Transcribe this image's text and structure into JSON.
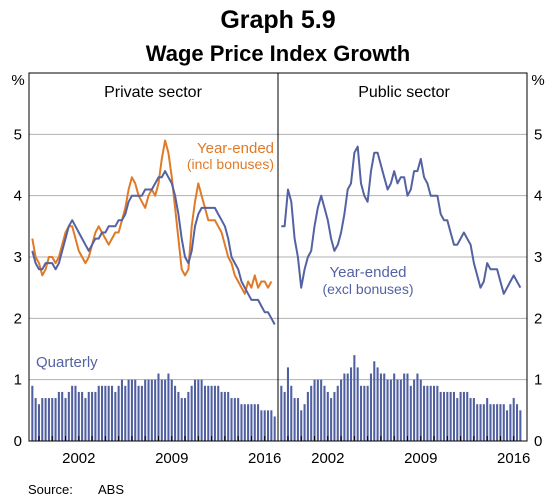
{
  "chart_data": {
    "type": "line",
    "title": "Graph 5.9",
    "subtitle": "Wage Price Index Growth",
    "ylabel": "%",
    "ylim": [
      0,
      6
    ],
    "yticks": [
      "0",
      "1",
      "2",
      "3",
      "4",
      "5"
    ],
    "xticks": [
      "2002",
      "2009",
      "2016"
    ],
    "source_label": "Source:",
    "source_value": "ABS",
    "colors": {
      "orange": "#e07a26",
      "blue": "#5462a3",
      "grid": "#b0b0b0",
      "bar": "#4f5fa0"
    },
    "panels": [
      {
        "name": "Private sector",
        "annotations": [
          {
            "text": "Year-ended",
            "color": "#e07a26"
          },
          {
            "text": "(incl bonuses)",
            "color": "#e07a26"
          },
          {
            "text": "Quarterly",
            "color": "#5462a3"
          }
        ],
        "series": [
          {
            "name": "Year-ended (incl bonuses)",
            "color": "#e07a26",
            "start": 1998.5,
            "step": 0.25,
            "values": [
              3.3,
              3.0,
              2.9,
              2.7,
              2.8,
              3.0,
              3.0,
              2.9,
              3.0,
              3.2,
              3.4,
              3.5,
              3.5,
              3.3,
              3.1,
              3.0,
              2.9,
              3.0,
              3.2,
              3.4,
              3.5,
              3.4,
              3.3,
              3.2,
              3.3,
              3.4,
              3.4,
              3.6,
              3.8,
              4.1,
              4.3,
              4.2,
              4.0,
              3.9,
              3.8,
              4.0,
              4.1,
              4.0,
              4.2,
              4.6,
              4.9,
              4.7,
              4.3,
              3.8,
              3.3,
              2.8,
              2.7,
              2.8,
              3.5,
              3.9,
              4.2,
              4.0,
              3.8,
              3.6,
              3.6,
              3.6,
              3.5,
              3.4,
              3.2,
              3.0,
              2.9,
              2.7,
              2.6,
              2.5,
              2.4,
              2.6,
              2.5,
              2.7,
              2.5,
              2.6,
              2.6,
              2.5,
              2.6
            ]
          },
          {
            "name": "Year-ended (excl bonuses)",
            "color": "#5462a3",
            "start": 1998.5,
            "step": 0.25,
            "values": [
              3.1,
              2.9,
              2.8,
              2.8,
              2.9,
              2.9,
              2.9,
              2.8,
              2.9,
              3.1,
              3.3,
              3.5,
              3.6,
              3.5,
              3.4,
              3.3,
              3.2,
              3.1,
              3.2,
              3.3,
              3.3,
              3.4,
              3.4,
              3.5,
              3.5,
              3.5,
              3.6,
              3.6,
              3.7,
              3.9,
              4.0,
              4.0,
              4.0,
              4.0,
              4.1,
              4.1,
              4.1,
              4.2,
              4.3,
              4.3,
              4.4,
              4.3,
              4.2,
              4.0,
              3.7,
              3.3,
              3.0,
              2.9,
              3.1,
              3.5,
              3.7,
              3.8,
              3.8,
              3.8,
              3.8,
              3.8,
              3.7,
              3.6,
              3.5,
              3.3,
              3.0,
              2.9,
              2.8,
              2.6,
              2.5,
              2.4,
              2.3,
              2.3,
              2.3,
              2.2,
              2.1,
              2.1,
              2.0,
              1.9
            ]
          }
        ],
        "bars": {
          "name": "Quarterly",
          "start": 1998.5,
          "step": 0.25,
          "values": [
            0.9,
            0.7,
            0.6,
            0.7,
            0.7,
            0.7,
            0.7,
            0.7,
            0.8,
            0.8,
            0.7,
            0.8,
            0.9,
            0.9,
            0.8,
            0.8,
            0.7,
            0.8,
            0.8,
            0.8,
            0.9,
            0.9,
            0.9,
            0.9,
            0.9,
            0.8,
            0.9,
            1.0,
            0.9,
            1.0,
            1.0,
            1.0,
            0.9,
            0.9,
            1.0,
            1.0,
            1.0,
            1.0,
            1.1,
            1.0,
            1.0,
            1.1,
            1.0,
            0.9,
            0.8,
            0.7,
            0.7,
            0.8,
            0.9,
            1.0,
            1.0,
            1.0,
            0.9,
            0.9,
            0.9,
            0.9,
            0.9,
            0.8,
            0.8,
            0.8,
            0.7,
            0.7,
            0.7,
            0.6,
            0.6,
            0.6,
            0.6,
            0.6,
            0.6,
            0.5,
            0.5,
            0.5,
            0.5,
            0.4
          ]
        }
      },
      {
        "name": "Public sector",
        "annotations": [
          {
            "text": "Year-ended",
            "color": "#5462a3"
          },
          {
            "text": "(excl bonuses)",
            "color": "#5462a3"
          }
        ],
        "series": [
          {
            "name": "Year-ended (excl bonuses)",
            "color": "#5462a3",
            "start": 1998.5,
            "step": 0.25,
            "values": [
              3.5,
              3.5,
              4.1,
              3.9,
              3.3,
              3.0,
              2.5,
              2.8,
              3.0,
              3.1,
              3.5,
              3.8,
              4.0,
              3.8,
              3.6,
              3.3,
              3.1,
              3.2,
              3.4,
              3.7,
              4.1,
              4.2,
              4.7,
              4.8,
              4.2,
              4.0,
              3.9,
              4.4,
              4.7,
              4.7,
              4.5,
              4.3,
              4.1,
              4.2,
              4.4,
              4.2,
              4.3,
              4.3,
              4.0,
              4.1,
              4.4,
              4.4,
              4.6,
              4.3,
              4.2,
              4.0,
              4.0,
              4.0,
              3.7,
              3.6,
              3.6,
              3.4,
              3.2,
              3.2,
              3.3,
              3.4,
              3.3,
              3.2,
              2.9,
              2.7,
              2.5,
              2.6,
              2.9,
              2.8,
              2.8,
              2.8,
              2.6,
              2.4,
              2.5,
              2.6,
              2.7,
              2.6,
              2.5
            ]
          }
        ],
        "bars": {
          "name": "Quarterly",
          "start": 1998.5,
          "step": 0.25,
          "values": [
            0.9,
            0.8,
            1.2,
            0.9,
            0.7,
            0.7,
            0.5,
            0.6,
            0.8,
            0.9,
            1.0,
            1.0,
            1.0,
            0.9,
            0.8,
            0.7,
            0.8,
            0.9,
            1.0,
            1.1,
            1.1,
            1.2,
            1.4,
            1.2,
            0.9,
            0.9,
            0.9,
            1.1,
            1.3,
            1.2,
            1.1,
            1.1,
            1.0,
            1.0,
            1.1,
            1.0,
            1.0,
            1.1,
            1.1,
            0.9,
            1.0,
            1.1,
            1.0,
            0.9,
            0.9,
            0.9,
            0.9,
            0.9,
            0.8,
            0.8,
            0.8,
            0.8,
            0.8,
            0.7,
            0.8,
            0.8,
            0.8,
            0.7,
            0.7,
            0.6,
            0.6,
            0.6,
            0.7,
            0.6,
            0.6,
            0.6,
            0.6,
            0.6,
            0.5,
            0.6,
            0.7,
            0.6,
            0.5
          ]
        }
      }
    ]
  }
}
